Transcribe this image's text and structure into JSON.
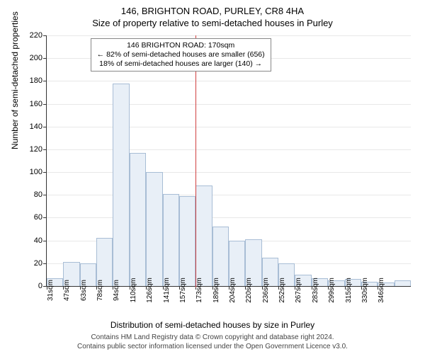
{
  "title_main": "146, BRIGHTON ROAD, PURLEY, CR8 4HA",
  "title_sub": "Size of property relative to semi-detached houses in Purley",
  "xlabel": "Distribution of semi-detached houses by size in Purley",
  "ylabel": "Number of semi-detached properties",
  "annotation": {
    "line1": "146 BRIGHTON ROAD: 170sqm",
    "line2": "← 82% of semi-detached houses are smaller (656)",
    "line3": "18% of semi-detached houses are larger (140) →"
  },
  "footer_line1": "Contains HM Land Registry data © Crown copyright and database right 2024.",
  "footer_line2": "Contains public sector information licensed under the Open Government Licence v3.0.",
  "chart": {
    "type": "histogram",
    "y_max": 220,
    "y_ticks": [
      0,
      20,
      40,
      60,
      80,
      100,
      120,
      140,
      160,
      180,
      200,
      220
    ],
    "x_ticks": [
      "31sqm",
      "47sqm",
      "63sqm",
      "78sqm",
      "94sqm",
      "110sqm",
      "126sqm",
      "141sqm",
      "157sqm",
      "173sqm",
      "189sqm",
      "204sqm",
      "220sqm",
      "236sqm",
      "252sqm",
      "267sqm",
      "283sqm",
      "299sqm",
      "315sqm",
      "330sqm",
      "346sqm"
    ],
    "bars": [
      7,
      21,
      20,
      42,
      178,
      117,
      100,
      81,
      79,
      88,
      52,
      40,
      41,
      25,
      20,
      10,
      7,
      5,
      6,
      4,
      3,
      5
    ],
    "bar_fill": "#e8eff7",
    "bar_stroke": "#a8bdd5",
    "ref_line_index": 9,
    "ref_line_color": "#d04040",
    "grid_color": "#e8e8e8",
    "background": "#ffffff",
    "title_fontsize": 13,
    "label_fontsize": 12,
    "tick_fontsize": 11,
    "annot_fontsize": 10.5
  }
}
